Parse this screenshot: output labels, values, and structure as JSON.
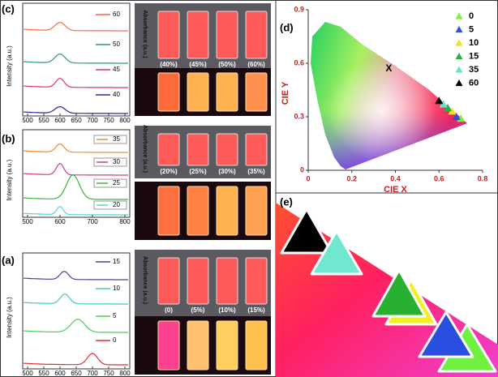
{
  "spectra": [
    {
      "label": "(c)",
      "y_label": "Intensity (a.u.)",
      "xlim": [
        485,
        815
      ],
      "xticks": [
        500,
        550,
        600,
        650,
        700,
        750,
        800
      ],
      "legend": [
        "60",
        "50",
        "45",
        "40"
      ]
    },
    {
      "label": "(b)",
      "y_label": "Intensity (a.u.)",
      "xlim": [
        485,
        815
      ],
      "xticks": [
        500,
        600,
        700,
        800
      ],
      "legend": [
        "35",
        "30",
        "25",
        "20"
      ]
    },
    {
      "label": "(a)",
      "y_label": "Intensity (a.u.)",
      "xlim": [
        485,
        815
      ],
      "xticks": [
        500,
        550,
        600,
        650,
        700,
        750,
        800
      ],
      "legend": [
        "15",
        "10",
        "5",
        "0"
      ]
    }
  ],
  "photos": [
    {
      "y_label": "Absorbance (a.u.)",
      "captions": [
        "(40%)",
        "(45%)",
        "(50%)",
        "(60%)"
      ]
    },
    {
      "y_label": "Absorbance (a.u.)",
      "captions": [
        "(20%)",
        "(25%)",
        "(30%)",
        "(35%)"
      ]
    },
    {
      "y_label": "Absorbance (a.u.)",
      "captions": [
        "(0)",
        "(5%)",
        "(10%)",
        "(15%)"
      ]
    }
  ],
  "chart_data": {
    "type": "scatter",
    "label": "(d)",
    "x_label": "CIE X",
    "y_label": "CIE Y",
    "annotation": "X",
    "xlim": [
      0,
      0.8
    ],
    "ylim": [
      0,
      0.9
    ],
    "xticks": [
      0,
      0.2,
      0.4,
      0.6,
      0.8
    ],
    "yticks": [
      0,
      0.3,
      0.6,
      0.9
    ],
    "series": [
      {
        "name": "0",
        "color": "#7cf03c",
        "x": [
          0.7
        ],
        "values": [
          0.29
        ]
      },
      {
        "name": "5",
        "color": "#2a50e0",
        "x": [
          0.68
        ],
        "values": [
          0.3
        ]
      },
      {
        "name": "10",
        "color": "#f0e020",
        "x": [
          0.66
        ],
        "values": [
          0.33
        ]
      },
      {
        "name": "15",
        "color": "#28b040",
        "x": [
          0.64
        ],
        "values": [
          0.35
        ]
      },
      {
        "name": "35",
        "color": "#60e8c8",
        "x": [
          0.62
        ],
        "values": [
          0.37
        ]
      },
      {
        "name": "60",
        "color": "#000000",
        "x": [
          0.6
        ],
        "values": [
          0.39
        ]
      }
    ]
  },
  "panel_e": {
    "label": "(e)"
  }
}
